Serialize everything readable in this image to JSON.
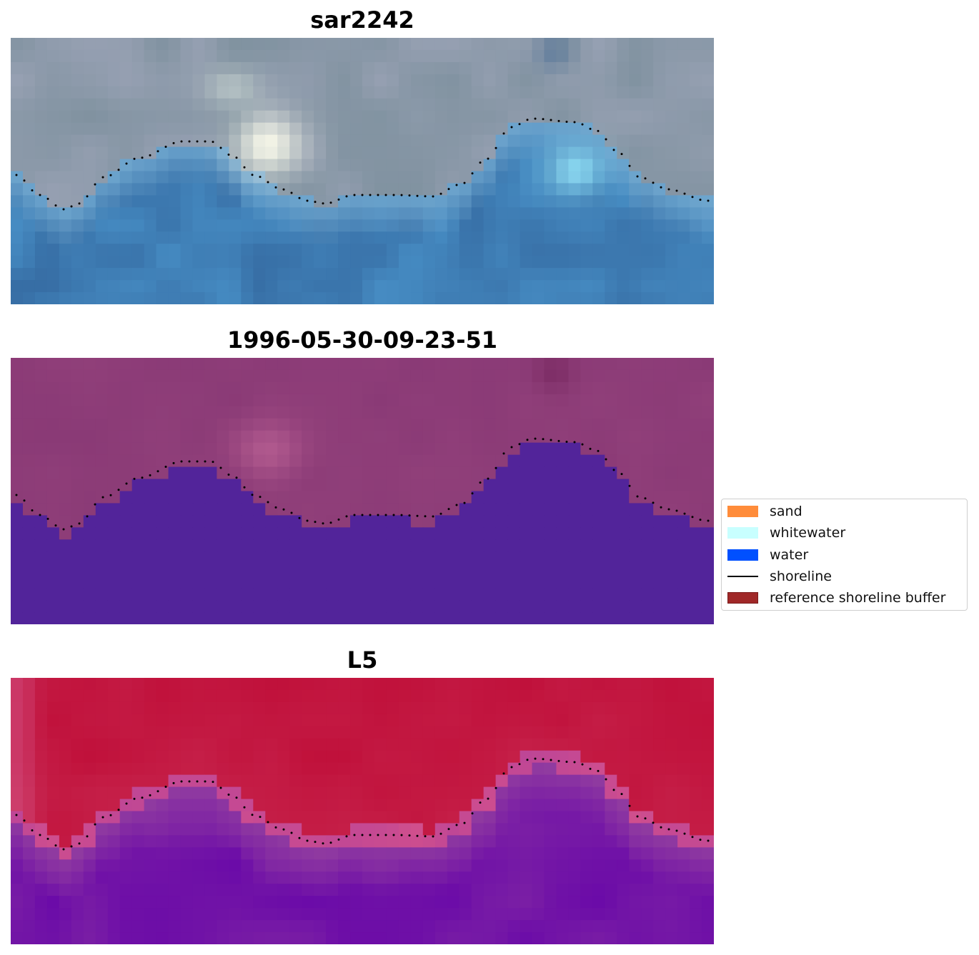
{
  "panels": [
    {
      "id": "rgb",
      "title": "sar2242"
    },
    {
      "id": "classified",
      "title": "1996-05-30-09-23-51"
    },
    {
      "id": "index",
      "title": "L5"
    }
  ],
  "legend": {
    "items": [
      {
        "label": "sand",
        "color": "#ff8c3a",
        "kind": "patch"
      },
      {
        "label": "whitewater",
        "color": "#c8ffff",
        "kind": "patch"
      },
      {
        "label": "water",
        "color": "#0050ff",
        "kind": "patch"
      },
      {
        "label": "shoreline",
        "color": "#000000",
        "kind": "line"
      },
      {
        "label": "reference shoreline buffer",
        "color": "#a02828",
        "kind": "patch"
      }
    ]
  },
  "colors": {
    "classified_land": "#8a3a76",
    "classified_water": "#52249a",
    "index_high": "#c0103a",
    "index_low": "#6a0aa8",
    "shoreline_dots": "#000000"
  }
}
